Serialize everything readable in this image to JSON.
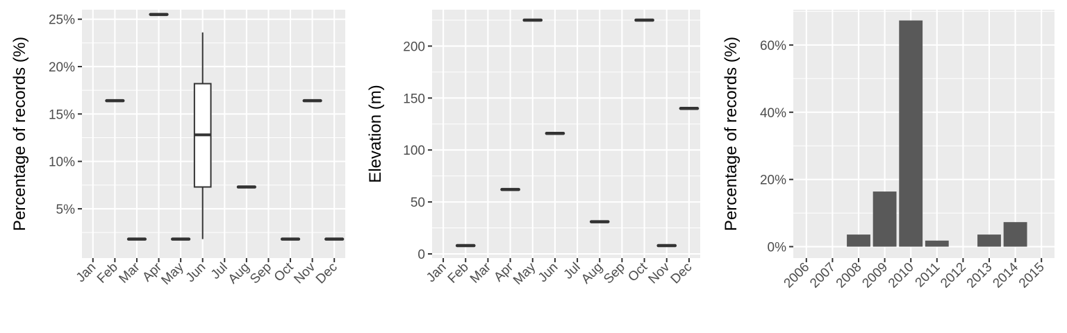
{
  "chart_data": [
    {
      "type": "boxplot",
      "ylabel": "Percentage of records (%)",
      "xlabel": "",
      "title": "",
      "categories": [
        "Jan",
        "Feb",
        "Mar",
        "Apr",
        "May",
        "Jun",
        "Jul",
        "Aug",
        "Sep",
        "Oct",
        "Nov",
        "Dec"
      ],
      "y_tick_values": [
        5,
        10,
        15,
        20,
        25
      ],
      "y_tick_labels": [
        "5%",
        "10%",
        "15%",
        "20%",
        "25%"
      ],
      "ylim": [
        -0.2,
        26.0
      ],
      "grid": true,
      "boxes": [
        {
          "category": "Feb",
          "min": 16.4,
          "q1": 16.4,
          "median": 16.4,
          "q3": 16.4,
          "max": 16.4
        },
        {
          "category": "Mar",
          "min": 1.8,
          "q1": 1.8,
          "median": 1.8,
          "q3": 1.8,
          "max": 1.8
        },
        {
          "category": "Apr",
          "min": 25.5,
          "q1": 25.5,
          "median": 25.5,
          "q3": 25.5,
          "max": 25.5
        },
        {
          "category": "May",
          "min": 1.8,
          "q1": 1.8,
          "median": 1.8,
          "q3": 1.8,
          "max": 1.8
        },
        {
          "category": "Jun",
          "min": 1.8,
          "q1": 7.3,
          "median": 12.8,
          "q3": 18.2,
          "max": 23.6
        },
        {
          "category": "Aug",
          "min": 7.3,
          "q1": 7.3,
          "median": 7.3,
          "q3": 7.3,
          "max": 7.3
        },
        {
          "category": "Oct",
          "min": 1.8,
          "q1": 1.8,
          "median": 1.8,
          "q3": 1.8,
          "max": 1.8
        },
        {
          "category": "Nov",
          "min": 16.4,
          "q1": 16.4,
          "median": 16.4,
          "q3": 16.4,
          "max": 16.4
        },
        {
          "category": "Dec",
          "min": 1.8,
          "q1": 1.8,
          "median": 1.8,
          "q3": 1.8,
          "max": 1.8
        }
      ]
    },
    {
      "type": "boxplot",
      "ylabel": "Elevation (m)",
      "xlabel": "",
      "title": "",
      "categories": [
        "Jan",
        "Feb",
        "Mar",
        "Apr",
        "May",
        "Jun",
        "Jul",
        "Aug",
        "Sep",
        "Oct",
        "Nov",
        "Dec"
      ],
      "y_tick_values": [
        0,
        50,
        100,
        150,
        200
      ],
      "y_tick_labels": [
        "0",
        "50",
        "100",
        "150",
        "200"
      ],
      "ylim": [
        -4,
        235
      ],
      "grid": true,
      "boxes": [
        {
          "category": "Feb",
          "min": 8,
          "q1": 8,
          "median": 8,
          "q3": 8,
          "max": 8
        },
        {
          "category": "Apr",
          "min": 62,
          "q1": 62,
          "median": 62,
          "q3": 62,
          "max": 62
        },
        {
          "category": "May",
          "min": 225,
          "q1": 225,
          "median": 225,
          "q3": 225,
          "max": 225
        },
        {
          "category": "Jun",
          "min": 116,
          "q1": 116,
          "median": 116,
          "q3": 116,
          "max": 116
        },
        {
          "category": "Aug",
          "min": 31,
          "q1": 31,
          "median": 31,
          "q3": 31,
          "max": 31
        },
        {
          "category": "Oct",
          "min": 225,
          "q1": 225,
          "median": 225,
          "q3": 225,
          "max": 225
        },
        {
          "category": "Nov",
          "min": 8,
          "q1": 8,
          "median": 8,
          "q3": 8,
          "max": 8
        },
        {
          "category": "Dec",
          "min": 140,
          "q1": 140,
          "median": 140,
          "q3": 140,
          "max": 140
        }
      ]
    },
    {
      "type": "bar",
      "ylabel": "Percentage of records (%)",
      "xlabel": "",
      "title": "",
      "categories": [
        "2006",
        "2007",
        "2008",
        "2009",
        "2010",
        "2011",
        "2012",
        "2013",
        "2014",
        "2015"
      ],
      "values": [
        0,
        0,
        3.6,
        16.4,
        67.3,
        1.8,
        0,
        3.6,
        7.3,
        0
      ],
      "y_tick_values": [
        0,
        20,
        40,
        60
      ],
      "y_tick_labels": [
        "0%",
        "20%",
        "40%",
        "60%"
      ],
      "ylim": [
        -3.4,
        70.5
      ],
      "grid": true,
      "bar_color": "#595959"
    }
  ],
  "colors": {
    "panel_background": "#ebebeb",
    "grid": "#ffffff",
    "box_line": "#333333",
    "bar_fill": "#595959",
    "tick_text": "#4d4d4d"
  }
}
